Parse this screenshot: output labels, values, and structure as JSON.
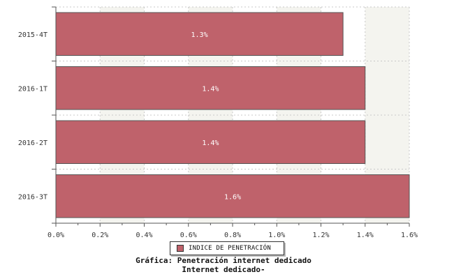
{
  "chart_data": {
    "type": "bar",
    "orientation": "horizontal",
    "categories": [
      "2015-4T",
      "2016-1T",
      "2016-2T",
      "2016-3T"
    ],
    "series": [
      {
        "name": "INDICE DE PENETRACIÓN",
        "values": [
          1.3,
          1.4,
          1.4,
          1.6
        ],
        "labels": [
          "1.3%",
          "1.4%",
          "1.4%",
          "1.6%"
        ],
        "color": "#bf626b"
      }
    ],
    "xlim": [
      0,
      1.6
    ],
    "xticks": [
      0.0,
      0.2,
      0.4,
      0.6,
      0.8,
      1.0,
      1.2,
      1.4,
      1.6
    ],
    "xtick_labels": [
      "0.0%",
      "0.2%",
      "0.4%",
      "0.6%",
      "0.8%",
      "1.0%",
      "1.2%",
      "1.4%",
      "1.6%"
    ],
    "grid": true,
    "legend_position": "bottom-center",
    "title": "Gráfica: Penetración internet dedicado",
    "subtitle": "Internet dedicado-"
  },
  "colors": {
    "bar": "#bf626b",
    "bar_edge": "#555555",
    "band_light": "#f4f4ef",
    "grid": "#c8c8c8"
  }
}
